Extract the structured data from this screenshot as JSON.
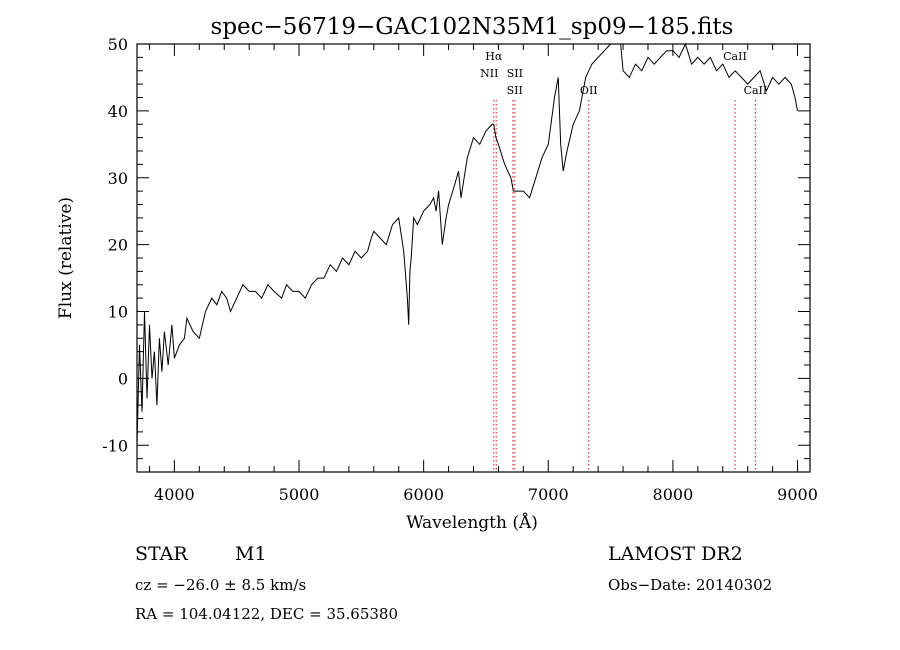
{
  "chart_data": {
    "type": "line",
    "title": "spec−56719−GAC102N35M1_sp09−185.fits",
    "xlabel": "Wavelength (Å)",
    "ylabel": "Flux (relative)",
    "xlim": [
      3700,
      9100
    ],
    "ylim": [
      -14,
      50
    ],
    "xticks": [
      4000,
      5000,
      6000,
      7000,
      8000,
      9000
    ],
    "yticks": [
      -10,
      0,
      10,
      20,
      30,
      40,
      50
    ],
    "line_marks": [
      {
        "label": "Hα",
        "x": 6563
      },
      {
        "label": "NII",
        "x": 6583
      },
      {
        "label": "SII",
        "x": 6716
      },
      {
        "label": "SII",
        "x": 6731
      },
      {
        "label": "OII",
        "x": 7325
      },
      {
        "label": "CaII",
        "x": 8498
      },
      {
        "label": "CaII",
        "x": 8662
      }
    ],
    "spectrum": {
      "x": [
        3700,
        3720,
        3740,
        3760,
        3780,
        3800,
        3820,
        3840,
        3860,
        3880,
        3900,
        3920,
        3950,
        3980,
        4000,
        4040,
        4080,
        4100,
        4150,
        4200,
        4250,
        4300,
        4340,
        4380,
        4420,
        4450,
        4500,
        4550,
        4600,
        4650,
        4700,
        4750,
        4800,
        4860,
        4900,
        4950,
        5000,
        5050,
        5100,
        5150,
        5200,
        5250,
        5300,
        5350,
        5400,
        5450,
        5500,
        5550,
        5580,
        5600,
        5650,
        5700,
        5750,
        5800,
        5840,
        5870,
        5880,
        5890,
        5900,
        5920,
        5950,
        6000,
        6050,
        6080,
        6100,
        6120,
        6150,
        6180,
        6200,
        6250,
        6280,
        6300,
        6350,
        6400,
        6450,
        6500,
        6550,
        6563,
        6580,
        6600,
        6650,
        6700,
        6720,
        6750,
        6800,
        6850,
        6900,
        6950,
        7000,
        7050,
        7080,
        7100,
        7120,
        7150,
        7200,
        7250,
        7300,
        7350,
        7400,
        7450,
        7500,
        7550,
        7580,
        7600,
        7650,
        7700,
        7750,
        7800,
        7850,
        7900,
        7950,
        8000,
        8050,
        8100,
        8150,
        8200,
        8250,
        8300,
        8350,
        8400,
        8450,
        8500,
        8550,
        8600,
        8650,
        8700,
        8750,
        8800,
        8850,
        8900,
        8950,
        8980,
        9000
      ],
      "y": [
        -10,
        5,
        -5,
        10,
        -3,
        8,
        0,
        4,
        -4,
        6,
        1,
        7,
        2,
        8,
        3,
        5,
        6,
        9,
        7,
        6,
        10,
        12,
        11,
        13,
        12,
        10,
        12,
        14,
        13,
        13,
        12,
        14,
        13,
        12,
        14,
        13,
        13,
        12,
        14,
        15,
        15,
        17,
        16,
        18,
        17,
        19,
        18,
        19,
        21,
        22,
        21,
        20,
        23,
        24,
        19,
        12,
        8,
        16,
        18,
        24,
        23,
        25,
        26,
        27,
        25,
        28,
        20,
        24,
        26,
        29,
        31,
        27,
        33,
        36,
        35,
        37,
        38,
        38,
        36,
        35,
        32,
        30,
        28,
        28,
        28,
        27,
        30,
        33,
        35,
        42,
        45,
        35,
        31,
        34,
        38,
        40,
        45,
        47,
        48,
        49,
        50,
        51,
        50,
        46,
        45,
        47,
        46,
        48,
        47,
        48,
        49,
        49,
        48,
        50,
        47,
        48,
        47,
        48,
        46,
        47,
        45,
        46,
        45,
        44,
        45,
        46,
        43,
        45,
        44,
        45,
        44,
        42,
        40
      ]
    }
  },
  "info": {
    "class": "STAR",
    "subclass": "M1",
    "cz": "cz = −26.0 ± 8.5 km/s",
    "coords": "RA = 104.04122, DEC =  35.65380",
    "survey": "LAMOST DR2",
    "obsdate": "Obs−Date: 20140302"
  }
}
